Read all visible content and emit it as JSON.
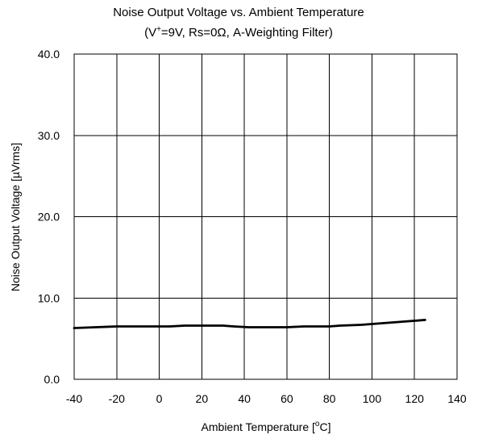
{
  "chart_data": {
    "type": "line",
    "title_line1": "Noise Output Voltage vs. Ambient Temperature",
    "title_line2_prefix": "(V",
    "title_line2_sup": "+",
    "title_line2_suffix": "=9V, Rs=0Ω, A-Weighting Filter)",
    "xlabel_prefix": "Ambient Temperature [",
    "xlabel_sup": "o",
    "xlabel_suffix": "C]",
    "ylabel": "Noise Output Voltage [µVrms]",
    "xlim": [
      -40,
      140
    ],
    "ylim": [
      0,
      40
    ],
    "xticks": [
      -40,
      -20,
      0,
      20,
      40,
      60,
      80,
      100,
      120,
      140
    ],
    "xtick_labels": [
      "-40",
      "-20",
      "0",
      "20",
      "40",
      "60",
      "80",
      "100",
      "120",
      "140"
    ],
    "yticks": [
      0,
      10,
      20,
      30,
      40
    ],
    "ytick_labels": [
      "0.0",
      "10.0",
      "20.0",
      "30.0",
      "40.0"
    ],
    "grid": true,
    "series": [
      {
        "x": [
          -40,
          -30,
          -20,
          -10,
          0,
          5,
          12,
          20,
          30,
          35,
          42,
          50,
          60,
          68,
          80,
          85,
          95,
          100,
          110,
          120,
          125
        ],
        "y": [
          6.3,
          6.4,
          6.5,
          6.5,
          6.5,
          6.5,
          6.6,
          6.6,
          6.6,
          6.5,
          6.4,
          6.4,
          6.4,
          6.5,
          6.5,
          6.6,
          6.7,
          6.8,
          7.0,
          7.2,
          7.3
        ]
      }
    ]
  }
}
